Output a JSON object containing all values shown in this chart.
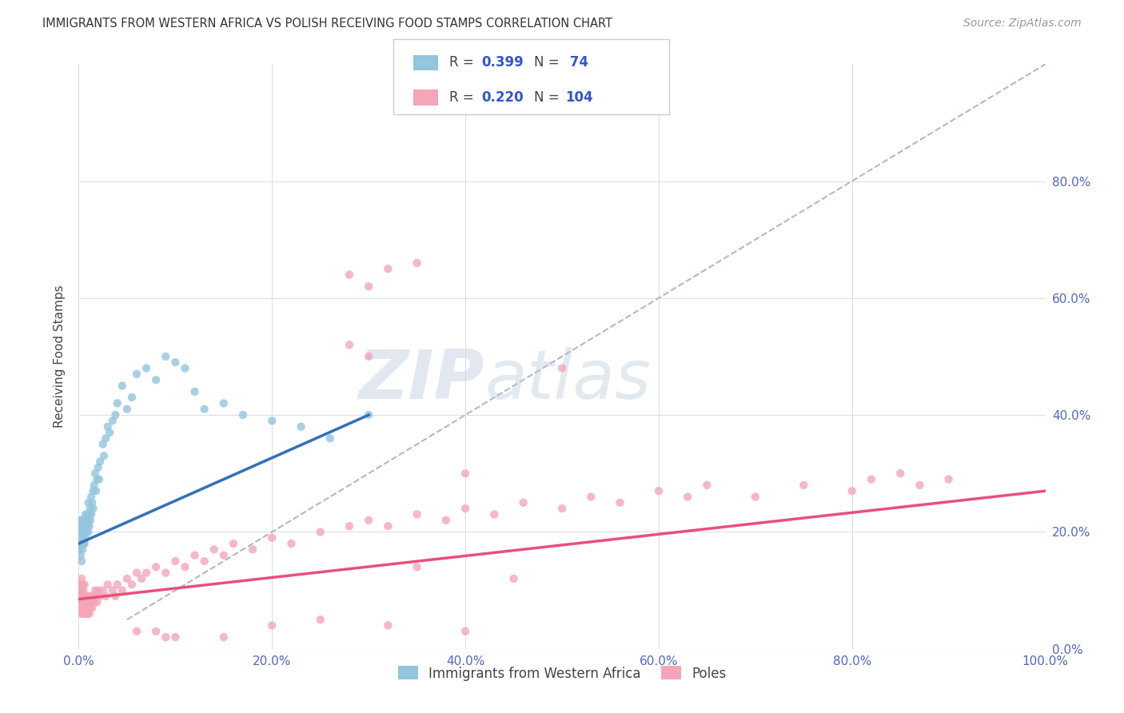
{
  "title": "IMMIGRANTS FROM WESTERN AFRICA VS POLISH RECEIVING FOOD STAMPS CORRELATION CHART",
  "source": "Source: ZipAtlas.com",
  "ylabel": "Receiving Food Stamps",
  "xlim": [
    0,
    1.0
  ],
  "ylim": [
    0,
    1.0
  ],
  "xticks": [
    0.0,
    0.2,
    0.4,
    0.6,
    0.8,
    1.0
  ],
  "xticklabels": [
    "0.0%",
    "20.0%",
    "40.0%",
    "60.0%",
    "80.0%",
    "100.0%"
  ],
  "yticks": [
    0.0,
    0.2,
    0.4,
    0.6,
    0.8
  ],
  "yticklabels_right": [
    "0.0%",
    "20.0%",
    "40.0%",
    "60.0%",
    "80.0%"
  ],
  "color_blue": "#92c5de",
  "color_pink": "#f4a5b8",
  "color_blue_line": "#3070b8",
  "color_pink_line": "#e8507a",
  "color_dashed": "#b0b8c8",
  "watermark_zip": "ZIP",
  "watermark_atlas": "atlas",
  "blue_x": [
    0.001,
    0.001,
    0.002,
    0.002,
    0.002,
    0.002,
    0.003,
    0.003,
    0.003,
    0.003,
    0.003,
    0.004,
    0.004,
    0.004,
    0.004,
    0.005,
    0.005,
    0.005,
    0.005,
    0.005,
    0.006,
    0.006,
    0.006,
    0.007,
    0.007,
    0.007,
    0.008,
    0.008,
    0.009,
    0.009,
    0.01,
    0.01,
    0.01,
    0.011,
    0.011,
    0.012,
    0.012,
    0.013,
    0.013,
    0.014,
    0.015,
    0.015,
    0.016,
    0.017,
    0.018,
    0.019,
    0.02,
    0.021,
    0.022,
    0.025,
    0.026,
    0.028,
    0.03,
    0.032,
    0.035,
    0.038,
    0.04,
    0.045,
    0.05,
    0.055,
    0.06,
    0.07,
    0.08,
    0.09,
    0.1,
    0.11,
    0.12,
    0.13,
    0.15,
    0.17,
    0.2,
    0.23,
    0.26,
    0.3
  ],
  "blue_y": [
    0.17,
    0.2,
    0.18,
    0.21,
    0.22,
    0.16,
    0.19,
    0.2,
    0.21,
    0.15,
    0.22,
    0.18,
    0.2,
    0.22,
    0.17,
    0.18,
    0.2,
    0.21,
    0.22,
    0.19,
    0.2,
    0.22,
    0.18,
    0.21,
    0.23,
    0.19,
    0.22,
    0.2,
    0.23,
    0.21,
    0.22,
    0.2,
    0.25,
    0.23,
    0.21,
    0.24,
    0.22,
    0.26,
    0.23,
    0.25,
    0.27,
    0.24,
    0.28,
    0.3,
    0.27,
    0.29,
    0.31,
    0.29,
    0.32,
    0.35,
    0.33,
    0.36,
    0.38,
    0.37,
    0.39,
    0.4,
    0.42,
    0.45,
    0.41,
    0.43,
    0.47,
    0.48,
    0.46,
    0.5,
    0.49,
    0.48,
    0.44,
    0.41,
    0.42,
    0.4,
    0.39,
    0.38,
    0.36,
    0.4
  ],
  "pink_x": [
    0.001,
    0.001,
    0.002,
    0.002,
    0.002,
    0.003,
    0.003,
    0.003,
    0.003,
    0.004,
    0.004,
    0.004,
    0.005,
    0.005,
    0.005,
    0.006,
    0.006,
    0.006,
    0.007,
    0.007,
    0.008,
    0.008,
    0.009,
    0.009,
    0.01,
    0.01,
    0.011,
    0.011,
    0.012,
    0.012,
    0.013,
    0.014,
    0.015,
    0.016,
    0.017,
    0.018,
    0.019,
    0.02,
    0.022,
    0.025,
    0.028,
    0.03,
    0.035,
    0.038,
    0.04,
    0.045,
    0.05,
    0.055,
    0.06,
    0.065,
    0.07,
    0.08,
    0.09,
    0.1,
    0.11,
    0.12,
    0.13,
    0.14,
    0.15,
    0.16,
    0.18,
    0.2,
    0.22,
    0.25,
    0.28,
    0.3,
    0.32,
    0.35,
    0.38,
    0.4,
    0.43,
    0.46,
    0.5,
    0.53,
    0.56,
    0.6,
    0.63,
    0.65,
    0.7,
    0.75,
    0.8,
    0.82,
    0.85,
    0.87,
    0.9,
    0.28,
    0.3,
    0.32,
    0.35,
    0.28,
    0.3,
    0.5,
    0.4,
    0.35,
    0.45,
    0.25,
    0.32,
    0.4,
    0.2,
    0.15,
    0.1,
    0.09,
    0.08,
    0.06
  ],
  "pink_y": [
    0.08,
    0.1,
    0.07,
    0.09,
    0.11,
    0.06,
    0.08,
    0.1,
    0.12,
    0.07,
    0.09,
    0.11,
    0.06,
    0.08,
    0.1,
    0.07,
    0.09,
    0.11,
    0.06,
    0.08,
    0.07,
    0.09,
    0.06,
    0.08,
    0.07,
    0.09,
    0.06,
    0.08,
    0.07,
    0.09,
    0.08,
    0.07,
    0.09,
    0.08,
    0.1,
    0.09,
    0.08,
    0.1,
    0.09,
    0.1,
    0.09,
    0.11,
    0.1,
    0.09,
    0.11,
    0.1,
    0.12,
    0.11,
    0.13,
    0.12,
    0.13,
    0.14,
    0.13,
    0.15,
    0.14,
    0.16,
    0.15,
    0.17,
    0.16,
    0.18,
    0.17,
    0.19,
    0.18,
    0.2,
    0.21,
    0.22,
    0.21,
    0.23,
    0.22,
    0.24,
    0.23,
    0.25,
    0.24,
    0.26,
    0.25,
    0.27,
    0.26,
    0.28,
    0.26,
    0.28,
    0.27,
    0.29,
    0.3,
    0.28,
    0.29,
    0.64,
    0.62,
    0.65,
    0.66,
    0.52,
    0.5,
    0.48,
    0.3,
    0.14,
    0.12,
    0.05,
    0.04,
    0.03,
    0.04,
    0.02,
    0.02,
    0.02,
    0.03,
    0.03
  ],
  "blue_line_x": [
    0.0,
    0.3
  ],
  "blue_line_y": [
    0.18,
    0.4
  ],
  "pink_line_x": [
    0.0,
    1.0
  ],
  "pink_line_y": [
    0.085,
    0.27
  ],
  "diag_line_x": [
    0.05,
    1.0
  ],
  "diag_line_y": [
    0.05,
    1.0
  ]
}
